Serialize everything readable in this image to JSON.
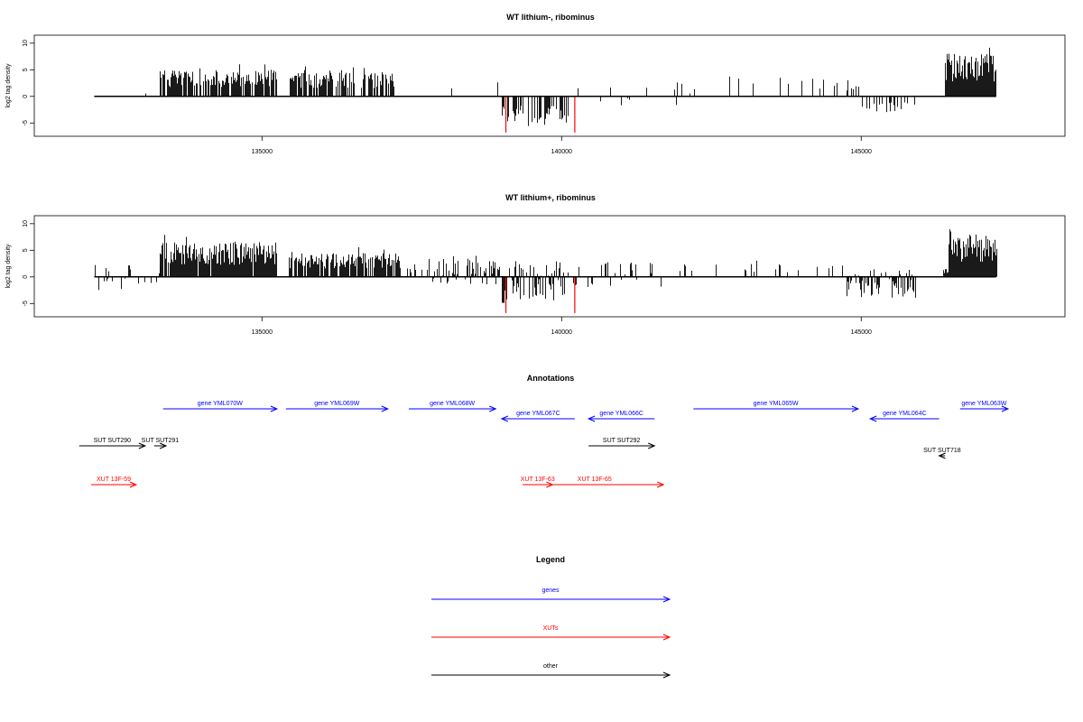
{
  "chart_data": [
    {
      "type": "bar",
      "title": "WT lithium-, ribominus",
      "xlabel": "",
      "ylabel": "log2 tag density",
      "xlim": [
        131200,
        148400
      ],
      "ylim": [
        -7.5,
        11.5
      ],
      "xticks": [
        135000,
        140000,
        145000
      ],
      "yticks": [
        -5,
        0,
        5,
        10
      ],
      "xtick_labels": [
        "135000",
        "140000",
        "145000"
      ],
      "ytick_labels": [
        "-5",
        "0",
        "5",
        "10"
      ],
      "baseline": [
        132200,
        147250
      ],
      "segments": [
        {
          "x0": 133050,
          "x1": 133050,
          "lo": -2,
          "hi": 1,
          "density": 1
        },
        {
          "x0": 133300,
          "x1": 135250,
          "lo": 0,
          "hi": 5,
          "density": 0.75
        },
        {
          "x0": 135450,
          "x1": 137200,
          "lo": 0,
          "hi": 4.5,
          "density": 0.7
        },
        {
          "x0": 137450,
          "x1": 139000,
          "lo": 0,
          "hi": 2.5,
          "density": 0.05
        },
        {
          "x0": 139000,
          "x1": 140100,
          "lo": -5,
          "hi": 0,
          "density": 0.55
        },
        {
          "x0": 140100,
          "x1": 142300,
          "lo": -2,
          "hi": 3,
          "density": 0.06
        },
        {
          "x0": 142300,
          "x1": 144700,
          "lo": 0,
          "hi": 3.5,
          "density": 0.05
        },
        {
          "x0": 144700,
          "x1": 145000,
          "lo": 0,
          "hi": 2.5,
          "density": 0.3
        },
        {
          "x0": 145000,
          "x1": 145900,
          "lo": -3,
          "hi": 0,
          "density": 0.3
        },
        {
          "x0": 146400,
          "x1": 147250,
          "lo": 0,
          "hi": 8,
          "density": 1
        }
      ],
      "highlights": [
        {
          "x": 139070,
          "lo": -6.8,
          "hi": 0,
          "color": "#ff0000"
        },
        {
          "x": 140220,
          "lo": -6.8,
          "hi": 0,
          "color": "#ff0000"
        }
      ]
    },
    {
      "type": "bar",
      "title": "WT lithium+, ribominus",
      "xlabel": "",
      "ylabel": "log2 tag density",
      "xlim": [
        131200,
        148400
      ],
      "ylim": [
        -7.5,
        11.5
      ],
      "xticks": [
        135000,
        140000,
        145000
      ],
      "yticks": [
        -5,
        0,
        5,
        10
      ],
      "xtick_labels": [
        "135000",
        "140000",
        "145000"
      ],
      "ytick_labels": [
        "-5",
        "0",
        "5",
        "10"
      ],
      "baseline": [
        132200,
        147250
      ],
      "segments": [
        {
          "x0": 132200,
          "x1": 133300,
          "lo": -3,
          "hi": 3,
          "density": 0.3
        },
        {
          "x0": 133300,
          "x1": 135250,
          "lo": 0,
          "hi": 6.5,
          "density": 0.95
        },
        {
          "x0": 135450,
          "x1": 137300,
          "lo": 0,
          "hi": 4.5,
          "density": 0.85
        },
        {
          "x0": 137300,
          "x1": 137750,
          "lo": 0,
          "hi": 2,
          "density": 0.2
        },
        {
          "x0": 137750,
          "x1": 139000,
          "lo": -1.5,
          "hi": 4,
          "density": 0.7
        },
        {
          "x0": 139000,
          "x1": 140100,
          "lo": -5,
          "hi": 3,
          "density": 0.75
        },
        {
          "x0": 140100,
          "x1": 141800,
          "lo": -2,
          "hi": 3,
          "density": 0.3
        },
        {
          "x0": 141800,
          "x1": 144750,
          "lo": 0,
          "hi": 2.5,
          "density": 0.1
        },
        {
          "x0": 144750,
          "x1": 145900,
          "lo": -4,
          "hi": 1.5,
          "density": 0.65
        },
        {
          "x0": 146350,
          "x1": 146450,
          "lo": 0,
          "hi": 1.5,
          "density": 0.5
        },
        {
          "x0": 146450,
          "x1": 147250,
          "lo": 0,
          "hi": 8,
          "density": 1
        }
      ],
      "highlights": [
        {
          "x": 139070,
          "lo": -6.8,
          "hi": 0,
          "color": "#ff0000"
        },
        {
          "x": 140220,
          "lo": -6.8,
          "hi": 0,
          "color": "#ff0000"
        }
      ]
    }
  ],
  "annotations": {
    "title": "Annotations",
    "items": [
      {
        "label": "gene YML070W",
        "color": "#0000ff",
        "x0": 133350,
        "x1": 135250,
        "row": 0,
        "dir": "right"
      },
      {
        "label": "gene YML069W",
        "color": "#0000ff",
        "x0": 135400,
        "x1": 137100,
        "row": 0,
        "dir": "right"
      },
      {
        "label": "gene YML068W",
        "color": "#0000ff",
        "x0": 137450,
        "x1": 138900,
        "row": 0,
        "dir": "right"
      },
      {
        "label": "gene YML067C",
        "color": "#0000ff",
        "x0": 139000,
        "x1": 140220,
        "row": 1,
        "dir": "left"
      },
      {
        "label": "gene YML066C",
        "color": "#0000ff",
        "x0": 140450,
        "x1": 141550,
        "row": 1,
        "dir": "left"
      },
      {
        "label": "gene YML065W",
        "color": "#0000ff",
        "x0": 142200,
        "x1": 144950,
        "row": 0,
        "dir": "right"
      },
      {
        "label": "gene YML064C",
        "color": "#0000ff",
        "x0": 145150,
        "x1": 146300,
        "row": 1,
        "dir": "left"
      },
      {
        "label": "gene YML063W",
        "color": "#0000ff",
        "x0": 146650,
        "x1": 147450,
        "row": 0,
        "dir": "right"
      },
      {
        "label": "SUT SUT290",
        "color": "#000000",
        "x0": 131950,
        "x1": 133050,
        "row": 2,
        "dir": "right"
      },
      {
        "label": "SUT SUT291",
        "color": "#000000",
        "x0": 133200,
        "x1": 133400,
        "row": 2,
        "dir": "right"
      },
      {
        "label": "SUT SUT292",
        "color": "#000000",
        "x0": 140450,
        "x1": 141550,
        "row": 2,
        "dir": "right"
      },
      {
        "label": "SUT SUT718",
        "color": "#000000",
        "x0": 146300,
        "x1": 146400,
        "row": 3,
        "dir": "left"
      },
      {
        "label": "XUT 13F-59",
        "color": "#ff0000",
        "x0": 132150,
        "x1": 132900,
        "row": 4,
        "dir": "right"
      },
      {
        "label": "XUT 13F-63",
        "color": "#ff0000",
        "x0": 139350,
        "x1": 139850,
        "row": 4,
        "dir": "right"
      },
      {
        "label": "XUT 13F-65",
        "color": "#ff0000",
        "x0": 139400,
        "x1": 141700,
        "row": 4,
        "dir": "right"
      }
    ]
  },
  "legend": {
    "title": "Legend",
    "entries": [
      {
        "label": "genes",
        "color": "#0000ff"
      },
      {
        "label": "XUTs",
        "color": "#ff0000"
      },
      {
        "label": "other",
        "color": "#000000"
      }
    ]
  }
}
